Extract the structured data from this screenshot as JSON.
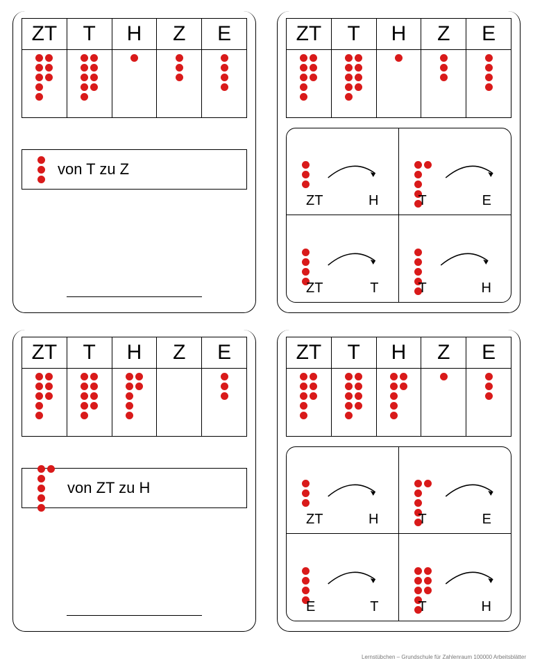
{
  "headers": [
    "ZT",
    "T",
    "H",
    "Z",
    "E"
  ],
  "dot_color": "#d91a1a",
  "cards": [
    {
      "type": "left",
      "values": [
        8,
        9,
        1,
        3,
        4
      ],
      "instruction_dots": 3,
      "instruction_text": "von T zu Z"
    },
    {
      "type": "right",
      "values": [
        8,
        9,
        1,
        3,
        4
      ],
      "choices": [
        {
          "dots": 3,
          "from": "ZT",
          "to": "H"
        },
        {
          "dots": 6,
          "from": "T",
          "to": "E"
        },
        {
          "dots": 4,
          "from": "ZT",
          "to": "T"
        },
        {
          "dots": 5,
          "from": "T",
          "to": "H"
        }
      ]
    },
    {
      "type": "left",
      "values": [
        8,
        9,
        7,
        0,
        3
      ],
      "instruction_dots": 6,
      "instruction_text": "von ZT zu H"
    },
    {
      "type": "right",
      "values": [
        8,
        9,
        7,
        1,
        3
      ],
      "choices": [
        {
          "dots": 3,
          "from": "ZT",
          "to": "H"
        },
        {
          "dots": 6,
          "from": "T",
          "to": "E"
        },
        {
          "dots": 4,
          "from": "E",
          "to": "T"
        },
        {
          "dots": 8,
          "from": "T",
          "to": "H"
        }
      ]
    }
  ],
  "footer": "Lernstübchen – Grundschule für Zahlenraum 100000 Arbeitsblätter"
}
